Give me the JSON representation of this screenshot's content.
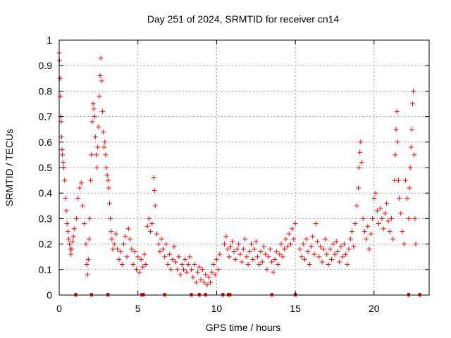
{
  "chart_data": {
    "type": "scatter",
    "title": "Day 251 of 2024, SRMTID for receiver cn14",
    "xlabel": "GPS time / hours",
    "ylabel": "SRMTID / TECUs",
    "xlim": [
      0,
      23.5
    ],
    "ylim": [
      0,
      1
    ],
    "xticks": [
      0,
      5,
      10,
      15,
      20
    ],
    "yticks": [
      0,
      0.1,
      0.2,
      0.3,
      0.4,
      0.5,
      0.6,
      0.7,
      0.8,
      0.9,
      1
    ],
    "ytick_labels": [
      "0",
      "0.1",
      "0.2",
      "0.3",
      "0.4",
      "0.5",
      "0.6",
      "0.7",
      "0.8",
      "0.9",
      "1"
    ],
    "grid": true,
    "marker": "+",
    "color": "#ff0000",
    "series": [
      {
        "name": "SRMTID",
        "points": [
          [
            0.0,
            0.95
          ],
          [
            0.02,
            0.92
          ],
          [
            0.05,
            0.85
          ],
          [
            0.08,
            0.78
          ],
          [
            0.1,
            0.7
          ],
          [
            0.13,
            0.68
          ],
          [
            0.15,
            0.62
          ],
          [
            0.18,
            0.57
          ],
          [
            0.2,
            0.55
          ],
          [
            0.25,
            0.52
          ],
          [
            0.3,
            0.5
          ],
          [
            0.35,
            0.45
          ],
          [
            0.4,
            0.38
          ],
          [
            0.45,
            0.33
          ],
          [
            0.5,
            0.28
          ],
          [
            0.55,
            0.25
          ],
          [
            0.6,
            0.22
          ],
          [
            0.65,
            0.2
          ],
          [
            0.7,
            0.18
          ],
          [
            0.75,
            0.16
          ],
          [
            0.8,
            0.18
          ],
          [
            0.85,
            0.21
          ],
          [
            0.9,
            0.23
          ],
          [
            0.95,
            0.26
          ],
          [
            1.1,
            0.3
          ],
          [
            1.2,
            0.38
          ],
          [
            1.3,
            0.42
          ],
          [
            1.4,
            0.44
          ],
          [
            1.5,
            0.35
          ],
          [
            1.6,
            0.28
          ],
          [
            1.7,
            0.2
          ],
          [
            1.75,
            0.12
          ],
          [
            1.8,
            0.08
          ],
          [
            1.85,
            0.14
          ],
          [
            1.9,
            0.22
          ],
          [
            1.95,
            0.3
          ],
          [
            2.0,
            0.45
          ],
          [
            2.05,
            0.55
          ],
          [
            2.1,
            0.68
          ],
          [
            2.15,
            0.75
          ],
          [
            2.2,
            0.73
          ],
          [
            2.25,
            0.7
          ],
          [
            2.3,
            0.62
          ],
          [
            2.35,
            0.55
          ],
          [
            2.4,
            0.5
          ],
          [
            2.45,
            0.58
          ],
          [
            2.5,
            0.66
          ],
          [
            2.55,
            0.78
          ],
          [
            2.6,
            0.86
          ],
          [
            2.65,
            0.93
          ],
          [
            2.7,
            0.84
          ],
          [
            2.75,
            0.72
          ],
          [
            2.8,
            0.64
          ],
          [
            2.85,
            0.58
          ],
          [
            2.9,
            0.6
          ],
          [
            2.95,
            0.55
          ],
          [
            3.0,
            0.5
          ],
          [
            3.05,
            0.47
          ],
          [
            3.1,
            0.45
          ],
          [
            3.15,
            0.42
          ],
          [
            3.2,
            0.36
          ],
          [
            3.25,
            0.3
          ],
          [
            3.3,
            0.25
          ],
          [
            3.35,
            0.22
          ],
          [
            3.4,
            0.18
          ],
          [
            3.5,
            0.2
          ],
          [
            3.6,
            0.24
          ],
          [
            3.7,
            0.18
          ],
          [
            3.8,
            0.14
          ],
          [
            3.9,
            0.17
          ],
          [
            4.0,
            0.12
          ],
          [
            4.1,
            0.2
          ],
          [
            4.2,
            0.23
          ],
          [
            4.3,
            0.15
          ],
          [
            4.4,
            0.26
          ],
          [
            4.5,
            0.22
          ],
          [
            4.6,
            0.18
          ],
          [
            4.7,
            0.12
          ],
          [
            4.8,
            0.17
          ],
          [
            4.9,
            0.1
          ],
          [
            5.0,
            0.15
          ],
          [
            5.1,
            0.09
          ],
          [
            5.2,
            0.14
          ],
          [
            5.3,
            0.11
          ],
          [
            5.4,
            0.16
          ],
          [
            5.5,
            0.12
          ],
          [
            5.6,
            0.27
          ],
          [
            5.7,
            0.3
          ],
          [
            5.8,
            0.25
          ],
          [
            5.9,
            0.28
          ],
          [
            6.0,
            0.46
          ],
          [
            6.05,
            0.41
          ],
          [
            6.1,
            0.35
          ],
          [
            6.2,
            0.24
          ],
          [
            6.3,
            0.2
          ],
          [
            6.4,
            0.17
          ],
          [
            6.5,
            0.22
          ],
          [
            6.6,
            0.18
          ],
          [
            6.7,
            0.15
          ],
          [
            6.8,
            0.2
          ],
          [
            6.9,
            0.12
          ],
          [
            7.0,
            0.16
          ],
          [
            7.1,
            0.1
          ],
          [
            7.2,
            0.14
          ],
          [
            7.3,
            0.19
          ],
          [
            7.4,
            0.13
          ],
          [
            7.5,
            0.1
          ],
          [
            7.6,
            0.15
          ],
          [
            7.7,
            0.08
          ],
          [
            7.8,
            0.12
          ],
          [
            7.9,
            0.1
          ],
          [
            8.0,
            0.14
          ],
          [
            8.1,
            0.09
          ],
          [
            8.2,
            0.12
          ],
          [
            8.3,
            0.15
          ],
          [
            8.4,
            0.1
          ],
          [
            8.5,
            0.07
          ],
          [
            8.6,
            0.12
          ],
          [
            8.7,
            0.05
          ],
          [
            8.8,
            0.09
          ],
          [
            8.9,
            0.11
          ],
          [
            9.0,
            0.06
          ],
          [
            9.1,
            0.1
          ],
          [
            9.2,
            0.05
          ],
          [
            9.3,
            0.08
          ],
          [
            9.4,
            0.04
          ],
          [
            9.5,
            0.07
          ],
          [
            9.6,
            0.05
          ],
          [
            9.7,
            0.09
          ],
          [
            9.8,
            0.12
          ],
          [
            9.9,
            0.08
          ],
          [
            10.0,
            0.14
          ],
          [
            10.1,
            0.1
          ],
          [
            10.2,
            0.16
          ],
          [
            10.5,
            0.2
          ],
          [
            10.6,
            0.23
          ],
          [
            10.7,
            0.18
          ],
          [
            10.8,
            0.15
          ],
          [
            10.9,
            0.19
          ],
          [
            11.0,
            0.21
          ],
          [
            11.1,
            0.17
          ],
          [
            11.2,
            0.14
          ],
          [
            11.3,
            0.18
          ],
          [
            11.4,
            0.2
          ],
          [
            11.5,
            0.16
          ],
          [
            11.6,
            0.13
          ],
          [
            11.7,
            0.18
          ],
          [
            11.8,
            0.22
          ],
          [
            11.9,
            0.15
          ],
          [
            12.0,
            0.12
          ],
          [
            12.1,
            0.17
          ],
          [
            12.2,
            0.2
          ],
          [
            12.3,
            0.14
          ],
          [
            12.4,
            0.18
          ],
          [
            12.5,
            0.21
          ],
          [
            12.6,
            0.15
          ],
          [
            12.7,
            0.12
          ],
          [
            12.8,
            0.17
          ],
          [
            12.9,
            0.13
          ],
          [
            13.0,
            0.19
          ],
          [
            13.1,
            0.16
          ],
          [
            13.2,
            0.1
          ],
          [
            13.3,
            0.15
          ],
          [
            13.4,
            0.18
          ],
          [
            13.5,
            0.13
          ],
          [
            13.6,
            0.09
          ],
          [
            13.7,
            0.14
          ],
          [
            13.8,
            0.17
          ],
          [
            13.9,
            0.12
          ],
          [
            14.0,
            0.16
          ],
          [
            14.1,
            0.2
          ],
          [
            14.2,
            0.15
          ],
          [
            14.3,
            0.18
          ],
          [
            14.4,
            0.22
          ],
          [
            14.5,
            0.19
          ],
          [
            14.6,
            0.24
          ],
          [
            14.7,
            0.2
          ],
          [
            14.8,
            0.26
          ],
          [
            14.9,
            0.22
          ],
          [
            15.0,
            0.28
          ],
          [
            15.3,
            0.18
          ],
          [
            15.4,
            0.15
          ],
          [
            15.5,
            0.2
          ],
          [
            15.6,
            0.14
          ],
          [
            15.7,
            0.22
          ],
          [
            15.8,
            0.17
          ],
          [
            15.9,
            0.12
          ],
          [
            16.0,
            0.19
          ],
          [
            16.1,
            0.23
          ],
          [
            16.2,
            0.16
          ],
          [
            16.3,
            0.28
          ],
          [
            16.4,
            0.21
          ],
          [
            16.5,
            0.15
          ],
          [
            16.6,
            0.19
          ],
          [
            16.7,
            0.13
          ],
          [
            16.8,
            0.18
          ],
          [
            16.9,
            0.22
          ],
          [
            17.0,
            0.16
          ],
          [
            17.1,
            0.12
          ],
          [
            17.2,
            0.18
          ],
          [
            17.3,
            0.14
          ],
          [
            17.4,
            0.2
          ],
          [
            17.5,
            0.16
          ],
          [
            17.6,
            0.21
          ],
          [
            17.7,
            0.17
          ],
          [
            17.8,
            0.13
          ],
          [
            17.9,
            0.19
          ],
          [
            18.0,
            0.15
          ],
          [
            18.1,
            0.2
          ],
          [
            18.2,
            0.16
          ],
          [
            18.3,
            0.12
          ],
          [
            18.4,
            0.18
          ],
          [
            18.5,
            0.22
          ],
          [
            18.6,
            0.25
          ],
          [
            18.7,
            0.19
          ],
          [
            18.8,
            0.28
          ],
          [
            18.9,
            0.35
          ],
          [
            19.0,
            0.42
          ],
          [
            19.05,
            0.5
          ],
          [
            19.1,
            0.56
          ],
          [
            19.15,
            0.6
          ],
          [
            19.2,
            0.52
          ],
          [
            19.3,
            0.3
          ],
          [
            19.4,
            0.25
          ],
          [
            19.5,
            0.22
          ],
          [
            19.6,
            0.27
          ],
          [
            19.7,
            0.18
          ],
          [
            19.8,
            0.24
          ],
          [
            19.9,
            0.3
          ],
          [
            20.0,
            0.38
          ],
          [
            20.1,
            0.4
          ],
          [
            20.2,
            0.33
          ],
          [
            20.3,
            0.28
          ],
          [
            20.4,
            0.34
          ],
          [
            20.5,
            0.3
          ],
          [
            20.6,
            0.26
          ],
          [
            20.7,
            0.32
          ],
          [
            20.8,
            0.36
          ],
          [
            20.9,
            0.29
          ],
          [
            21.0,
            0.25
          ],
          [
            21.1,
            0.3
          ],
          [
            21.2,
            0.22
          ],
          [
            21.3,
            0.45
          ],
          [
            21.35,
            0.55
          ],
          [
            21.4,
            0.65
          ],
          [
            21.45,
            0.72
          ],
          [
            21.5,
            0.6
          ],
          [
            21.55,
            0.45
          ],
          [
            21.6,
            0.38
          ],
          [
            21.7,
            0.32
          ],
          [
            21.8,
            0.25
          ],
          [
            21.9,
            0.2
          ],
          [
            22.0,
            0.45
          ],
          [
            22.1,
            0.38
          ],
          [
            22.2,
            0.3
          ],
          [
            22.25,
            0.42
          ],
          [
            22.3,
            0.5
          ],
          [
            22.35,
            0.58
          ],
          [
            22.4,
            0.65
          ],
          [
            22.45,
            0.75
          ],
          [
            22.5,
            0.8
          ],
          [
            22.55,
            0.55
          ],
          [
            22.6,
            0.3
          ],
          [
            22.65,
            0.2
          ]
        ]
      }
    ],
    "zero_markers_x": [
      1.05,
      2.05,
      3.1,
      5.25,
      5.35,
      6.7,
      8.4,
      8.9,
      9.3,
      10.4,
      10.75,
      10.85,
      13.5,
      15.0,
      22.2,
      22.9
    ]
  }
}
